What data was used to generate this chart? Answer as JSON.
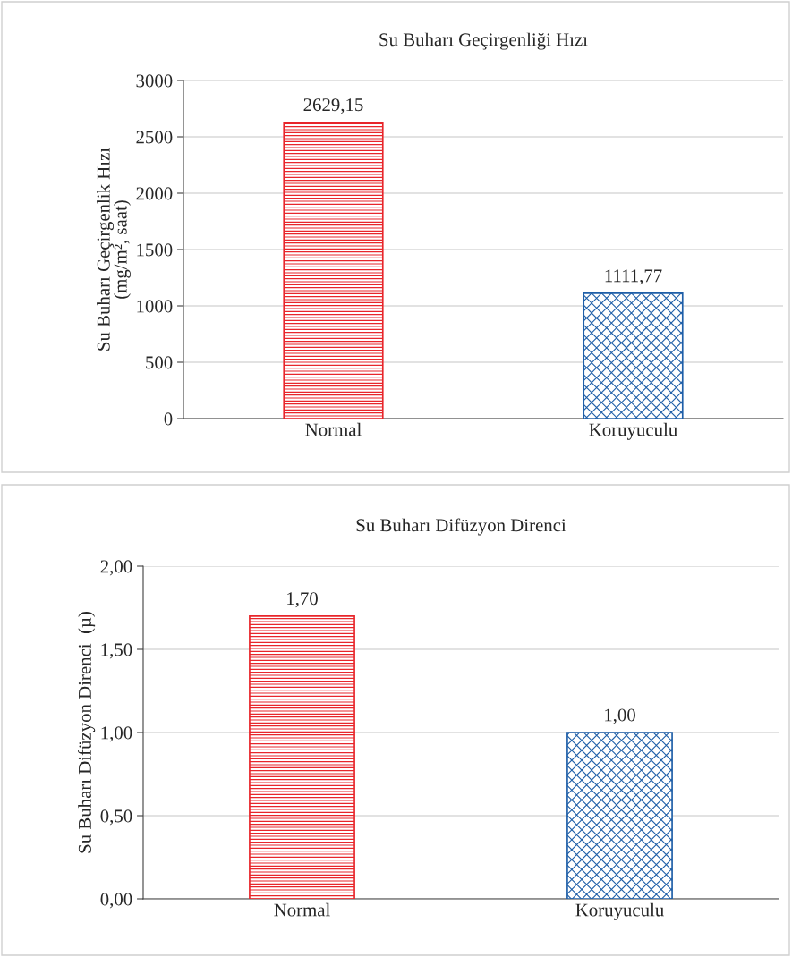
{
  "chart_data": [
    {
      "type": "bar",
      "title": "Su Buharı Geçirgenliği Hızı",
      "ylabel": "Su Buharı Geçirgenlik Hızı\n(mg/m², saat)",
      "categories": [
        "Normal",
        "Koruyuculu"
      ],
      "values": [
        2629.15,
        1111.77
      ],
      "colors": [
        "#e8262b",
        "#1f5fa8"
      ],
      "value_labels": [
        "2629,15",
        "1111,77"
      ],
      "ylim": [
        0,
        3000
      ],
      "yticks": [
        0,
        500,
        1000,
        1500,
        2000,
        2500,
        3000
      ],
      "grid": "y",
      "legend": false
    },
    {
      "type": "bar",
      "title": "Su Buharı Difüzyon Direnci",
      "ylabel": "Su Buharı Difüzyon Direnci  (µ)",
      "categories": [
        "Normal",
        "Koruyuculu"
      ],
      "values": [
        1.7,
        1.0
      ],
      "colors": [
        "#e8262b",
        "#1f5fa8"
      ],
      "value_labels": [
        "1,70",
        "1,00"
      ],
      "ylim": [
        0,
        2
      ],
      "yticks": [
        {
          "value": 0,
          "label": "0,00"
        },
        {
          "value": 0.5,
          "label": "0,50"
        },
        {
          "value": 1,
          "label": "1,00"
        },
        {
          "value": 1.5,
          "label": "1,50"
        },
        {
          "value": 2,
          "label": "2,00"
        }
      ],
      "grid": "y",
      "legend": false
    }
  ]
}
